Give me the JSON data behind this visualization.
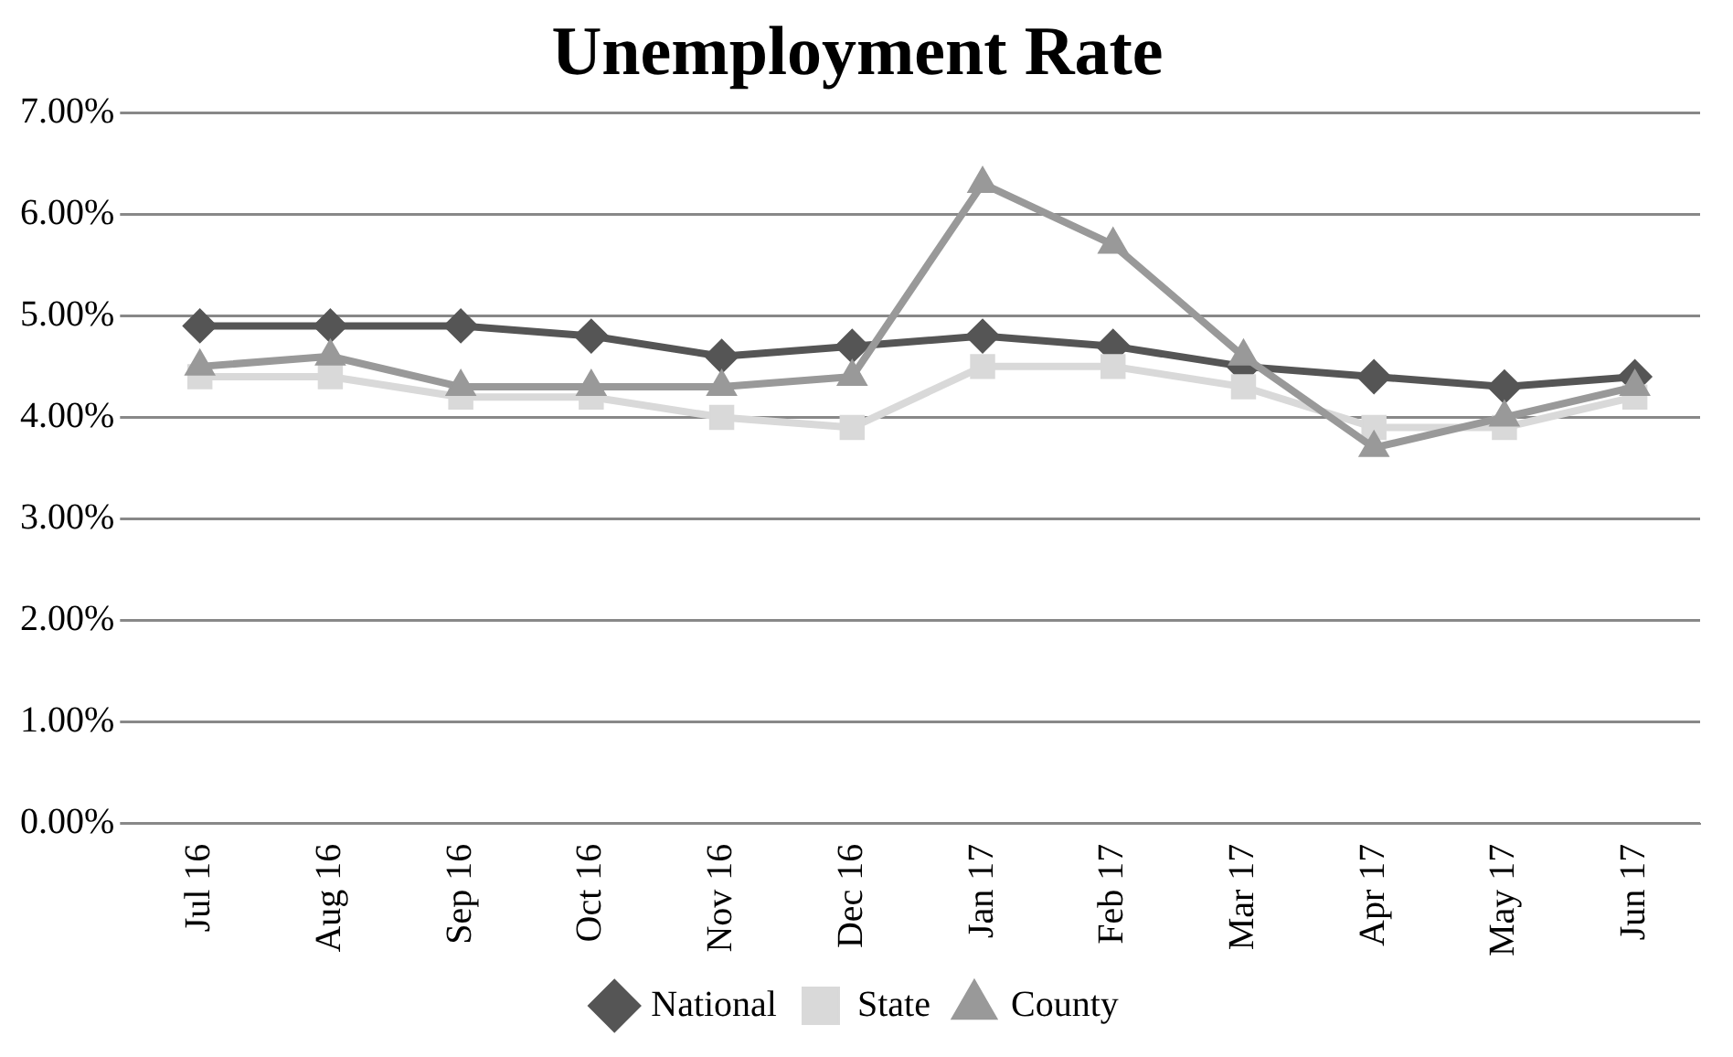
{
  "chart_data": {
    "type": "line",
    "title": "Unemployment Rate",
    "categories": [
      "Jul 16",
      "Aug 16",
      "Sep 16",
      "Oct 16",
      "Nov 16",
      "Dec 16",
      "Jan 17",
      "Feb 17",
      "Mar 17",
      "Apr 17",
      "May 17",
      "Jun 17"
    ],
    "series": [
      {
        "name": "National",
        "color": "#555555",
        "marker": "diamond",
        "values": [
          4.9,
          4.9,
          4.9,
          4.8,
          4.6,
          4.7,
          4.8,
          4.7,
          4.5,
          4.4,
          4.3,
          4.4
        ]
      },
      {
        "name": "State",
        "color": "#d9d9d9",
        "marker": "square",
        "values": [
          4.4,
          4.4,
          4.2,
          4.2,
          4.0,
          3.9,
          4.5,
          4.5,
          4.3,
          3.9,
          3.9,
          4.2
        ]
      },
      {
        "name": "County",
        "color": "#999999",
        "marker": "triangle",
        "values": [
          4.5,
          4.6,
          4.3,
          4.3,
          4.3,
          4.4,
          6.3,
          5.7,
          4.6,
          3.7,
          4.0,
          4.3
        ]
      }
    ],
    "ylim": [
      0,
      7
    ],
    "yticks": [
      {
        "value": 0,
        "label": "0.00%"
      },
      {
        "value": 1,
        "label": "1.00%"
      },
      {
        "value": 2,
        "label": "2.00%"
      },
      {
        "value": 3,
        "label": "3.00%"
      },
      {
        "value": 4,
        "label": "4.00%"
      },
      {
        "value": 5,
        "label": "5.00%"
      },
      {
        "value": 6,
        "label": "6.00%"
      },
      {
        "value": 7,
        "label": "7.00%"
      }
    ],
    "grid": "y",
    "legend": "bottom"
  }
}
